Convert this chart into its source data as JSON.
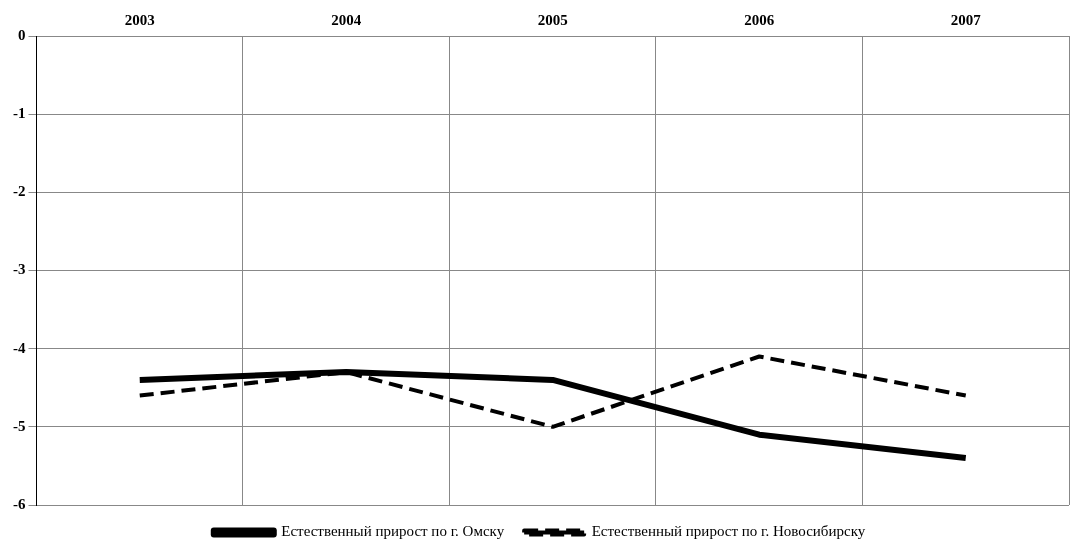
{
  "chart_data": {
    "type": "line",
    "categories": [
      "2003",
      "2004",
      "2005",
      "2006",
      "2007"
    ],
    "series": [
      {
        "name": "Естественный прирост по г. Омску",
        "color": "#000000",
        "line_style": "solid",
        "values": [
          -4.4,
          -4.3,
          -4.4,
          -5.1,
          -5.4
        ]
      },
      {
        "name": "Естественный прирост по г. Новосибирску",
        "color": "#000000",
        "line_style": "dashed",
        "values": [
          -4.6,
          -4.3,
          -5.0,
          -4.1,
          -4.6
        ]
      }
    ],
    "ylim": [
      -6,
      0
    ],
    "yticks": [
      -6,
      -5,
      -4,
      -3,
      -2,
      -1,
      0
    ],
    "grid": true,
    "legend": "bottom",
    "marker": "none"
  }
}
